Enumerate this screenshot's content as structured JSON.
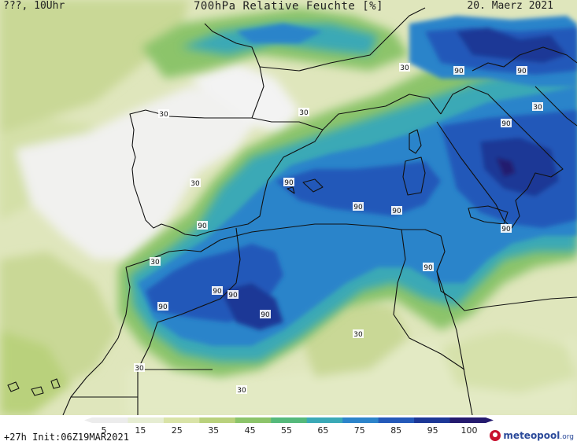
{
  "header": {
    "left": "???, 10Uhr",
    "title": "700hPa Relative Feuchte [%]",
    "date": "20. Maerz 2021"
  },
  "footer": {
    "run_info": "+27h Init:06Z19MAR2021",
    "brand": "meteopool",
    "brand_suffix": ".org"
  },
  "legend": {
    "ticks": [
      "5",
      "15",
      "25",
      "35",
      "45",
      "55",
      "65",
      "75",
      "85",
      "95",
      "100"
    ],
    "colors": [
      "#ececec",
      "#e6edd2",
      "#d9e3a7",
      "#b9d17c",
      "#8cc46a",
      "#55b97b",
      "#3aa9b6",
      "#2c84ca",
      "#2459b9",
      "#1c3796",
      "#241a6e"
    ]
  },
  "contour_labels": [
    {
      "text": "30"
    },
    {
      "text": "30"
    },
    {
      "text": "30"
    },
    {
      "text": "30"
    },
    {
      "text": "30"
    },
    {
      "text": "30"
    },
    {
      "text": "30"
    },
    {
      "text": "30"
    },
    {
      "text": "30"
    },
    {
      "text": "90"
    },
    {
      "text": "90"
    },
    {
      "text": "90"
    },
    {
      "text": "90"
    },
    {
      "text": "90"
    },
    {
      "text": "90"
    },
    {
      "text": "90"
    },
    {
      "text": "90"
    },
    {
      "text": "90"
    },
    {
      "text": "90"
    },
    {
      "text": "90"
    },
    {
      "text": "90"
    },
    {
      "text": "90"
    }
  ]
}
